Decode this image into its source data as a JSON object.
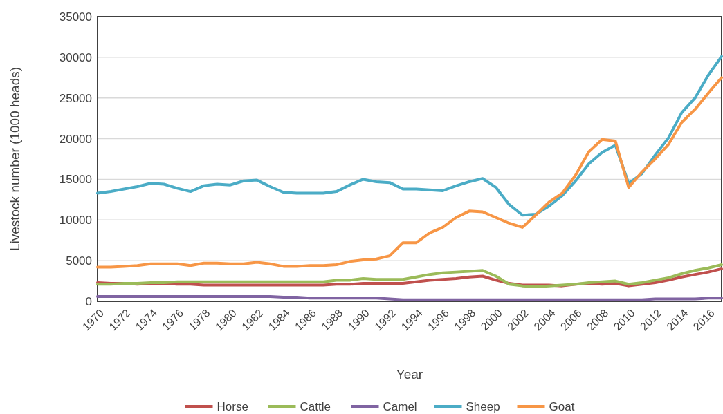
{
  "chart_data": {
    "type": "line",
    "xlabel": "Year",
    "ylabel": "Livestock number (1000 heads)",
    "categories": [
      "1970",
      null,
      "1972",
      null,
      "1974",
      null,
      "1976",
      null,
      "1978",
      null,
      "1980",
      null,
      "1982",
      null,
      "1984",
      null,
      "1986",
      null,
      "1988",
      null,
      "1990",
      null,
      "1992",
      null,
      "1994",
      null,
      "1996",
      null,
      "1998",
      null,
      "2000",
      null,
      "2002",
      null,
      "2004",
      null,
      "2006",
      null,
      "2008",
      null,
      "2010",
      null,
      "2012",
      null,
      "2014",
      null,
      "2016",
      null
    ],
    "ylim": [
      0,
      35000
    ],
    "yticks": [
      0,
      5000,
      10000,
      15000,
      20000,
      25000,
      30000,
      35000
    ],
    "grid": "y",
    "legend": "bottom",
    "marker": "none",
    "series": [
      {
        "name": "Horse",
        "color": "#c0504d",
        "values": [
          2300,
          2200,
          2200,
          2100,
          2200,
          2200,
          2100,
          2100,
          2000,
          2000,
          2000,
          2000,
          2000,
          2000,
          2000,
          2000,
          2000,
          2000,
          2100,
          2100,
          2200,
          2200,
          2200,
          2200,
          2400,
          2600,
          2700,
          2800,
          3000,
          3100,
          2600,
          2200,
          2000,
          2000,
          2000,
          1900,
          2100,
          2200,
          2100,
          2200,
          1900,
          2100,
          2300,
          2600,
          3000,
          3300,
          3600,
          4000
        ]
      },
      {
        "name": "Cattle",
        "color": "#9bbb59",
        "values": [
          2100,
          2100,
          2200,
          2200,
          2300,
          2300,
          2400,
          2400,
          2400,
          2400,
          2400,
          2400,
          2400,
          2400,
          2400,
          2400,
          2400,
          2400,
          2600,
          2600,
          2800,
          2700,
          2700,
          2700,
          3000,
          3300,
          3500,
          3600,
          3700,
          3800,
          3100,
          2100,
          1900,
          1800,
          1900,
          2000,
          2100,
          2300,
          2400,
          2500,
          2100,
          2300,
          2600,
          2900,
          3400,
          3800,
          4100,
          4500
        ]
      },
      {
        "name": "Camel",
        "color": "#8064a2",
        "values": [
          600,
          600,
          600,
          600,
          600,
          600,
          600,
          600,
          600,
          600,
          600,
          600,
          600,
          600,
          500,
          500,
          400,
          400,
          400,
          400,
          400,
          400,
          300,
          200,
          200,
          200,
          200,
          200,
          200,
          200,
          200,
          200,
          200,
          200,
          200,
          200,
          200,
          200,
          200,
          200,
          200,
          200,
          300,
          300,
          300,
          300,
          400,
          400
        ]
      },
      {
        "name": "Sheep",
        "color": "#4bacc6",
        "values": [
          13300,
          13500,
          13800,
          14100,
          14500,
          14400,
          13900,
          13500,
          14200,
          14400,
          14300,
          14800,
          14900,
          14100,
          13400,
          13300,
          13300,
          13300,
          13500,
          14300,
          15000,
          14700,
          14600,
          13800,
          13800,
          13700,
          13600,
          14200,
          14700,
          15100,
          14000,
          11900,
          10600,
          10700,
          11700,
          13000,
          14800,
          16900,
          18300,
          19200,
          14500,
          15700,
          18000,
          20100,
          23200,
          25000,
          27800,
          30100
        ]
      },
      {
        "name": "Goat",
        "color": "#f79646",
        "values": [
          4200,
          4200,
          4300,
          4400,
          4600,
          4600,
          4600,
          4400,
          4700,
          4700,
          4600,
          4600,
          4800,
          4600,
          4300,
          4300,
          4400,
          4400,
          4500,
          4900,
          5100,
          5200,
          5600,
          7200,
          7200,
          8400,
          9100,
          10300,
          11100,
          11000,
          10300,
          9600,
          9100,
          10600,
          12200,
          13300,
          15500,
          18400,
          19900,
          19700,
          14000,
          15900,
          17500,
          19300,
          22000,
          23600,
          25600,
          27500
        ]
      }
    ]
  }
}
